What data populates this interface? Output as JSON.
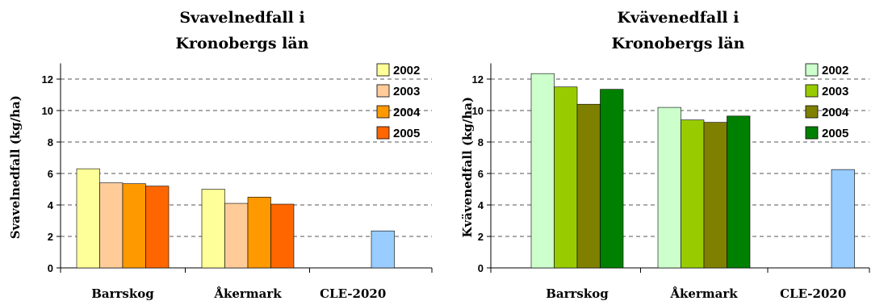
{
  "chart_data": [
    {
      "type": "bar",
      "title_lines": [
        "Svavelnedfall i",
        "Kronobergs län"
      ],
      "xlabel": "",
      "ylabel": "Svavelnedfall (kg/ha)",
      "ylim": [
        0,
        13
      ],
      "yticks": [
        0,
        2,
        4,
        6,
        8,
        10,
        12
      ],
      "grid": true,
      "legend_position": "top-right",
      "categories": [
        "Barrskog",
        "Åkermark",
        "CLE-2020"
      ],
      "series": [
        {
          "name": "2002",
          "color": "#FFFF99",
          "values": [
            6.3,
            5.0,
            null
          ]
        },
        {
          "name": "2003",
          "color": "#FFCC99",
          "values": [
            5.4,
            4.1,
            null
          ]
        },
        {
          "name": "2004",
          "color": "#FF9900",
          "values": [
            5.35,
            4.5,
            null
          ]
        },
        {
          "name": "2005",
          "color": "#FF6600",
          "values": [
            5.2,
            4.05,
            null
          ]
        }
      ],
      "reference": {
        "category": "CLE-2020",
        "value": 2.35,
        "color": "#99CCFF"
      }
    },
    {
      "type": "bar",
      "title_lines": [
        "Kvävenedfall i",
        "Kronobergs län"
      ],
      "xlabel": "",
      "ylabel": "Kvävenedfall (kg/ha)",
      "ylim": [
        0,
        13
      ],
      "yticks": [
        0,
        2,
        4,
        6,
        8,
        10,
        12
      ],
      "grid": true,
      "legend_position": "top-right",
      "categories": [
        "Barrskog",
        "Åkermark",
        "CLE-2020"
      ],
      "series": [
        {
          "name": "2002",
          "color": "#CCFFCC",
          "values": [
            12.35,
            10.2,
            null
          ]
        },
        {
          "name": "2003",
          "color": "#99CC00",
          "values": [
            11.5,
            9.4,
            null
          ]
        },
        {
          "name": "2004",
          "color": "#808000",
          "values": [
            10.4,
            9.25,
            null
          ]
        },
        {
          "name": "2005",
          "color": "#008000",
          "values": [
            11.35,
            9.65,
            null
          ]
        }
      ],
      "reference": {
        "category": "CLE-2020",
        "value": 6.25,
        "color": "#99CCFF"
      }
    }
  ]
}
